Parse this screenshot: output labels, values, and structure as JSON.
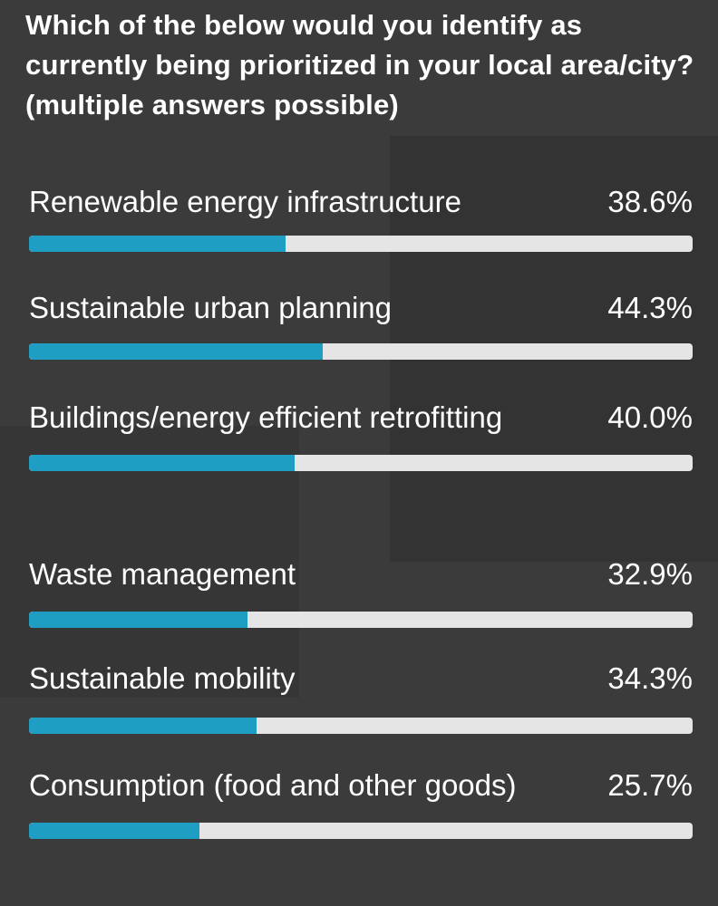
{
  "poll": {
    "question": "Which of the below would you identify as currently being prioritized in your local area/city? (multiple answers possible)",
    "fill_color": "#1f9ec4",
    "track_color": "#e5e5e5",
    "options": [
      {
        "label": "Renewable energy infrastructure",
        "percent_text": "38.6%",
        "value": 38.6
      },
      {
        "label": "Sustainable urban planning",
        "percent_text": "44.3%",
        "value": 44.3
      },
      {
        "label": "Buildings/energy efficient retrofitting",
        "percent_text": "40.0%",
        "value": 40.0
      },
      {
        "label": "Waste management",
        "percent_text": "32.9%",
        "value": 32.9
      },
      {
        "label": "Sustainable mobility",
        "percent_text": "34.3%",
        "value": 34.3
      },
      {
        "label": "Consumption (food and other goods)",
        "percent_text": "25.7%",
        "value": 25.7
      }
    ]
  }
}
